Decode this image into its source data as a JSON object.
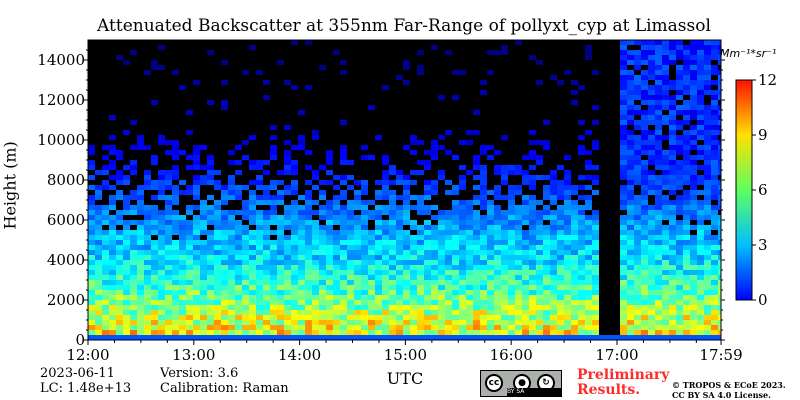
{
  "chart_data": {
    "type": "heatmap",
    "title": "Attenuated Backscatter at 355nm Far-Range of pollyxt_cyp at Limassol",
    "xlabel": "UTC",
    "ylabel": "Height (m)",
    "x_ticks": [
      "12:00",
      "13:00",
      "14:00",
      "15:00",
      "16:00",
      "17:00",
      "17:59"
    ],
    "x_range_hours": [
      12.0,
      17.983
    ],
    "y_ticks": [
      0,
      2000,
      4000,
      6000,
      8000,
      10000,
      12000,
      14000
    ],
    "y_range": [
      0,
      15000
    ],
    "colorbar": {
      "unit": "Mm⁻¹*sr⁻¹",
      "ticks": [
        0,
        3,
        6,
        9,
        12
      ],
      "range": [
        0,
        12
      ],
      "colormap": "jet"
    },
    "data_gap": {
      "start_hour": 16.83,
      "end_hour": 17.02
    },
    "profile_description_hours_m_value": [
      {
        "height_m": 100,
        "value": 2.5
      },
      {
        "height_m": 300,
        "value": 7.5
      },
      {
        "height_m": 1000,
        "value": 7.0
      },
      {
        "height_m": 2000,
        "value": 5.8
      },
      {
        "height_m": 3000,
        "value": 5.0
      },
      {
        "height_m": 4000,
        "value": 4.2
      },
      {
        "height_m": 6000,
        "value": 3.2
      },
      {
        "height_m": 8000,
        "value": 2.0
      },
      {
        "height_m": 10000,
        "value": 1.0
      }
    ],
    "colors": {
      "low": "#00007f",
      "mid": "#7fff7f",
      "high": "#ff0000",
      "missing": "#000000"
    }
  },
  "info": {
    "date": "2023-06-11",
    "lc": "LC: 1.48e+13",
    "version": "Version: 3.6",
    "calibration": "Calibration: Raman"
  },
  "license": {
    "badge_text": "cc",
    "badge_strip": "BY  SA",
    "preliminary_line1": "Preliminary",
    "preliminary_line2": "Results.",
    "copyright_line1": "© TROPOS & ECoE 2023.",
    "copyright_line2": "CC BY SA 4.0 License."
  }
}
